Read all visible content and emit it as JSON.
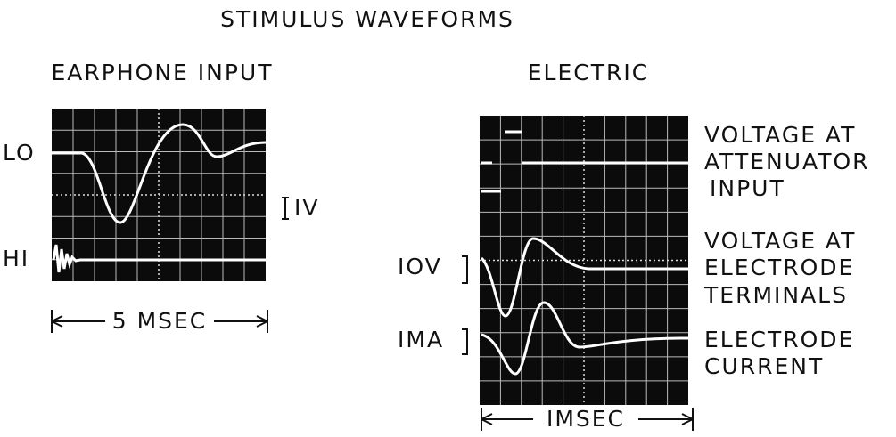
{
  "title": "STIMULUS WAVEFORMS",
  "left_panel": {
    "heading": "EARPHONE INPUT",
    "trace_labels": [
      "LO",
      "HI"
    ],
    "scale": "IV",
    "time": "5 MSEC"
  },
  "right_panel": {
    "heading": "ELECTRIC",
    "trace_labels": [
      [
        "VOLTAGE AT",
        "ATTENUATOR",
        "INPUT"
      ],
      [
        "VOLTAGE AT",
        "ELECTRODE",
        "TERMINALS"
      ],
      [
        "ELECTRODE",
        "CURRENT"
      ]
    ],
    "scales": [
      "IOV",
      "IMA"
    ],
    "time": "IMSEC"
  }
}
